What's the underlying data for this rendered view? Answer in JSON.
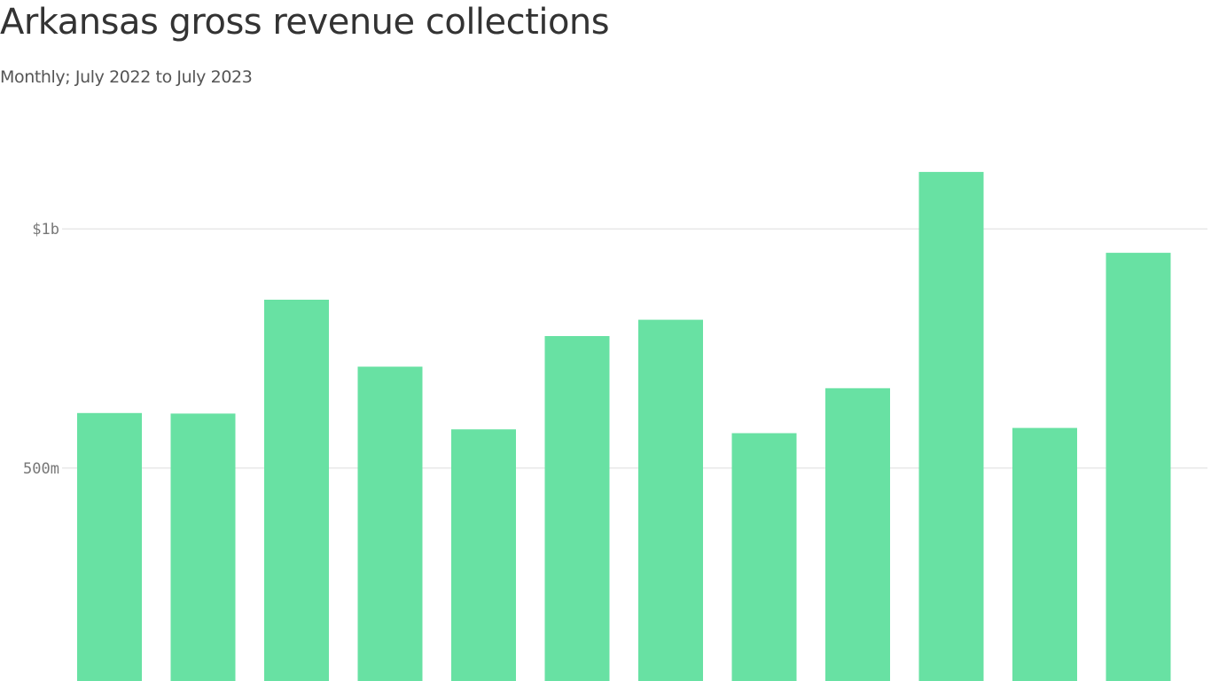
{
  "chart_data": {
    "type": "bar",
    "title": "Arkansas gross revenue collections",
    "subtitle": "Monthly; July 2022 to July 2023",
    "categories": [
      "",
      "",
      "",
      "",
      "",
      "",
      "",
      "",
      "",
      "",
      "",
      ""
    ],
    "values": [
      615,
      614,
      852,
      712,
      581,
      776,
      810,
      573,
      667,
      1119,
      584,
      950
    ],
    "xlabel": "",
    "ylabel": "",
    "yticks": [
      {
        "value": 500,
        "label": "500m"
      },
      {
        "value": 1000,
        "label": "$1b"
      }
    ],
    "ylim": [
      55,
      1230
    ],
    "grid": true,
    "bar_color": "#68e1a3",
    "grid_color": "#dddddd"
  }
}
